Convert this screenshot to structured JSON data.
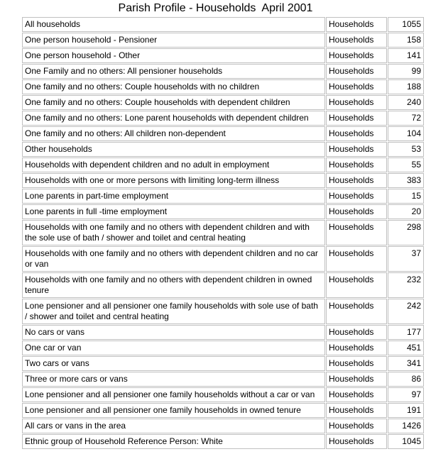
{
  "title": "Parish Profile - Households  April 2001",
  "measure_label": "Households",
  "colors": {
    "background": "#ffffff",
    "text": "#000000",
    "table_border": "#c0c0c0"
  },
  "chart_data": {
    "type": "table",
    "title": "Parish Profile - Households  April 2001",
    "rows": [
      {
        "label": "All households",
        "measure": "Households",
        "value": 1055
      },
      {
        "label": "One person household - Pensioner",
        "measure": "Households",
        "value": 158
      },
      {
        "label": "One person household - Other",
        "measure": "Households",
        "value": 141
      },
      {
        "label": "One Family and no others: All pensioner households",
        "measure": "Households",
        "value": 99
      },
      {
        "label": "One family and no others: Couple households with no children",
        "measure": "Households",
        "value": 188
      },
      {
        "label": "One family and no others: Couple households with dependent children",
        "measure": "Households",
        "value": 240
      },
      {
        "label": "One family and no others: Lone parent households with dependent children",
        "measure": "Households",
        "value": 72
      },
      {
        "label": "One family and no others: All children non-dependent",
        "measure": "Households",
        "value": 104
      },
      {
        "label": "Other households",
        "measure": "Households",
        "value": 53
      },
      {
        "label": "Households with dependent children and no adult in employment",
        "measure": "Households",
        "value": 55
      },
      {
        "label": "Households with one or more persons with limiting long-term illness",
        "measure": "Households",
        "value": 383
      },
      {
        "label": "Lone parents in part-time employment",
        "measure": "Households",
        "value": 15
      },
      {
        "label": "Lone parents in full -time employment",
        "measure": "Households",
        "value": 20
      },
      {
        "label": "Households with one family and no others with dependent children and with the sole use of bath / shower and toilet and central heating",
        "measure": "Households",
        "value": 298
      },
      {
        "label": "Households with one family and no others with dependent children and no car or van",
        "measure": "Households",
        "value": 37
      },
      {
        "label": "Households with one family and no others with dependent children in owned tenure",
        "measure": "Households",
        "value": 232
      },
      {
        "label": "Lone pensioner and all pensioner one family households with sole use of bath / shower and toilet and central heating",
        "measure": "Households",
        "value": 242
      },
      {
        "label": "No cars or vans",
        "measure": "Households",
        "value": 177
      },
      {
        "label": "One car or van",
        "measure": "Households",
        "value": 451
      },
      {
        "label": "Two cars or vans",
        "measure": "Households",
        "value": 341
      },
      {
        "label": "Three or more cars or vans",
        "measure": "Households",
        "value": 86
      },
      {
        "label": "Lone pensioner and all pensioner one family households without a car or van",
        "measure": "Households",
        "value": 97
      },
      {
        "label": "Lone pensioner and all pensioner one family households in owned tenure",
        "measure": "Households",
        "value": 191
      },
      {
        "label": "All cars or vans in the area",
        "measure": "Households",
        "value": 1426
      },
      {
        "label": "Ethnic group of Household Reference Person: White",
        "measure": "Households",
        "value": 1045
      }
    ]
  }
}
